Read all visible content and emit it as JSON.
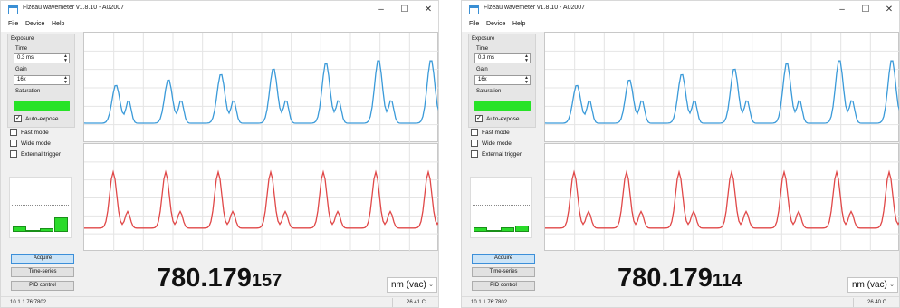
{
  "windows": [
    {
      "title": "Fizeau wavemeter v1.8.10 - A02007",
      "menu": [
        "File",
        "Device",
        "Help"
      ],
      "window_controls": [
        "–",
        "☐",
        "✕"
      ],
      "exposure": {
        "group_label": "Exposure",
        "time_label": "Time",
        "time_value": "0.3 ms",
        "gain_label": "Gain",
        "gain_value": "16x",
        "saturation_label": "Saturation",
        "auto_expose_label": "Auto-expose",
        "auto_expose_checked": true
      },
      "options": [
        {
          "label": "Fast mode",
          "checked": false
        },
        {
          "label": "Wide mode",
          "checked": false
        },
        {
          "label": "External trigger",
          "checked": false
        }
      ],
      "histogram_levels": [
        0.35,
        0.1,
        0.2,
        0.9
      ],
      "buttons": {
        "acquire": "Acquire",
        "time_series": "Time-series",
        "pid_control": "PID control"
      },
      "reading_main": "780.179",
      "reading_tail": "157",
      "unit": "nm (vac)",
      "status_left": "10.1.1.76:7802",
      "status_right": "26.41 C"
    },
    {
      "title": "Fizeau wavemeter v1.8.10 - A02007",
      "menu": [
        "File",
        "Device",
        "Help"
      ],
      "window_controls": [
        "–",
        "☐",
        "✕"
      ],
      "exposure": {
        "group_label": "Exposure",
        "time_label": "Time",
        "time_value": "0.3 ms",
        "gain_label": "Gain",
        "gain_value": "16x",
        "saturation_label": "Saturation",
        "auto_expose_label": "Auto-expose",
        "auto_expose_checked": true
      },
      "options": [
        {
          "label": "Fast mode",
          "checked": false
        },
        {
          "label": "Wide mode",
          "checked": false
        },
        {
          "label": "External trigger",
          "checked": false
        }
      ],
      "histogram_levels": [
        0.3,
        0.1,
        0.3,
        0.4
      ],
      "buttons": {
        "acquire": "Acquire",
        "time_series": "Time-series",
        "pid_control": "PID control"
      },
      "reading_main": "780.179",
      "reading_tail": "114",
      "unit": "nm (vac)",
      "status_left": "10.1.1.76:7802",
      "status_right": "26.40 C"
    }
  ],
  "colors": {
    "blue_trace": "#3a9ad9",
    "red_trace": "#e04848",
    "saturation": "#27e327",
    "grid": "#e4e4e4"
  },
  "icons": {
    "app": "app-icon",
    "minimize": "minimize-icon",
    "maximize": "maximize-icon",
    "close": "close-icon"
  }
}
